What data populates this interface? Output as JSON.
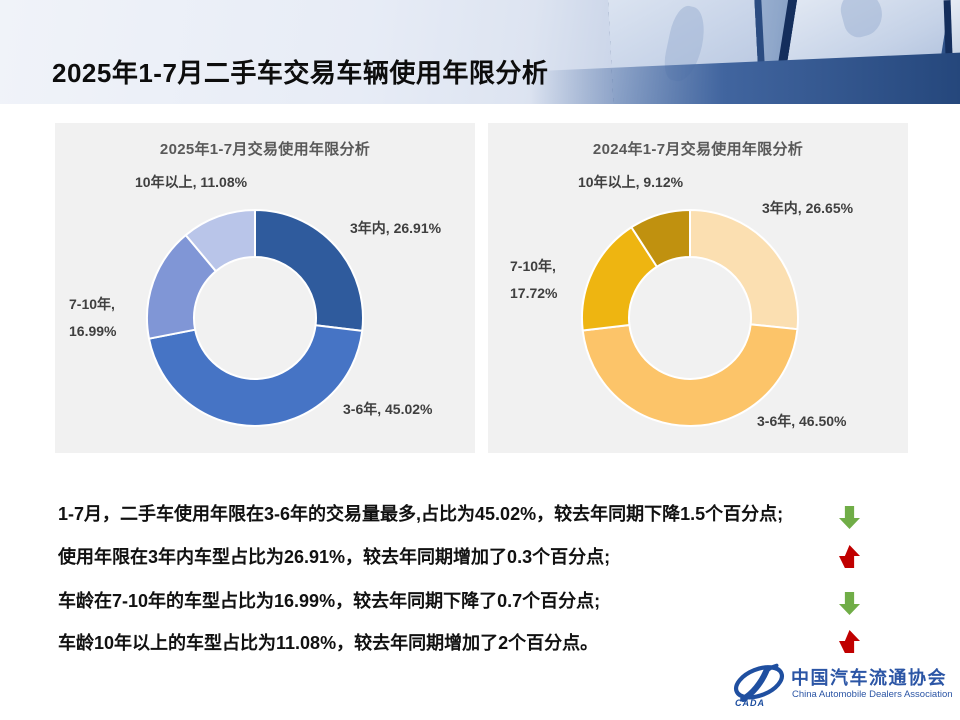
{
  "slide_title": "2025年1-7月二手车交易车辆使用年限分析",
  "trend_colors": {
    "up": "#c00000",
    "down": "#70ad47"
  },
  "chart_data": [
    {
      "type": "pie",
      "subtype": "donut",
      "title": "2025年1-7月交易使用年限分析",
      "categories": [
        "3年内",
        "3-6年",
        "7-10年",
        "10年以上"
      ],
      "values": [
        26.91,
        45.02,
        16.99,
        11.08
      ],
      "unit": "%",
      "start_angle_deg": 0,
      "direction": "clockwise",
      "legend": "none",
      "colors": [
        "#2f5b9d",
        "#4674c5",
        "#8096d6",
        "#b9c5e9"
      ],
      "labels": [
        "3年内, 26.91%",
        "3-6年, 45.02%",
        "7-10年,\n16.99%",
        "10年以上, 11.08%"
      ]
    },
    {
      "type": "pie",
      "subtype": "donut",
      "title": "2024年1-7月交易使用年限分析",
      "categories": [
        "3年内",
        "3-6年",
        "7-10年",
        "10年以上"
      ],
      "values": [
        26.65,
        46.5,
        17.72,
        9.12
      ],
      "unit": "%",
      "start_angle_deg": 0,
      "direction": "clockwise",
      "legend": "none",
      "colors": [
        "#fbdfb1",
        "#fcc469",
        "#eeb511",
        "#c0910f"
      ],
      "labels": [
        "3年内, 26.65%",
        "3-6年, 46.50%",
        "7-10年,\n17.72%",
        "10年以上, 9.12%"
      ]
    }
  ],
  "bullets": [
    {
      "text": "1-7月，二手车使用年限在3-6年的交易量最多,占比为45.02%，较去年同期下降1.5个百分点;",
      "trend": "down"
    },
    {
      "text": "使用年限在3年内车型占比为26.91%，较去年同期增加了0.3个百分点;",
      "trend": "up"
    },
    {
      "text": "车龄在7-10年的车型占比为16.99%，较去年同期下降了0.7个百分点;",
      "trend": "down"
    },
    {
      "text": "车龄10年以上的车型占比为11.08%，较去年同期增加了2个百分点。",
      "trend": "up"
    }
  ],
  "logo": {
    "cada": "CADA",
    "name_cn": "中国汽车流通协会",
    "name_en": "China Automobile Dealers Association"
  }
}
